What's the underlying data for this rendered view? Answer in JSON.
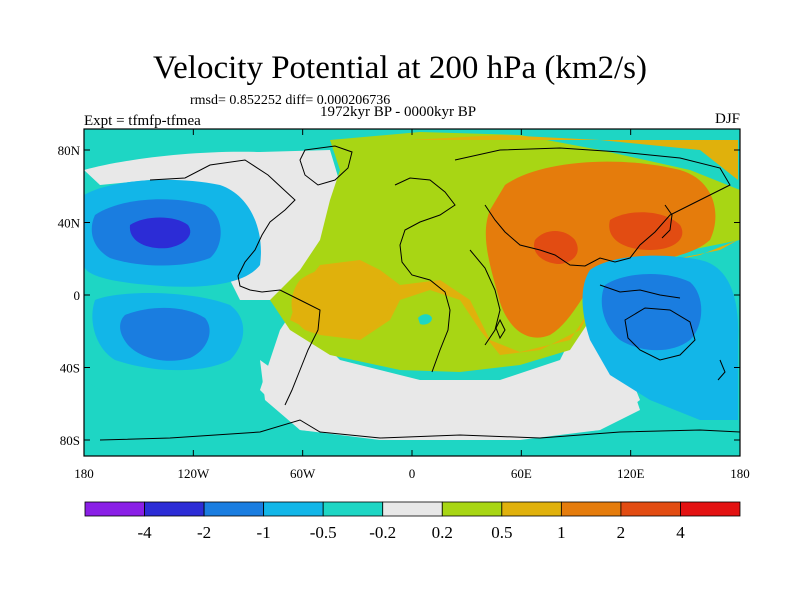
{
  "title": "Velocity Potential at 200 hPa (km2/s)",
  "stats": "rmsd= 0.852252 diff= 0.000206736",
  "experiment": "Expt = tfmfp-tfmea",
  "period": "1972kyr BP - 0000kyr BP",
  "season": "DJF",
  "lon_ticks": [
    "180",
    "120W",
    "60W",
    "0",
    "60E",
    "120E",
    "180"
  ],
  "lat_ticks": [
    "80N",
    "40N",
    "0",
    "40S",
    "80S"
  ],
  "colorbar": {
    "colors": [
      "#8a1fe6",
      "#2c2cd6",
      "#1a7de0",
      "#12b6e8",
      "#1ed6c4",
      "#e8e8e8",
      "#a8d614",
      "#e0b10c",
      "#e57c0c",
      "#e24c12",
      "#e31212"
    ],
    "labels": [
      "-4",
      "-2",
      "-1",
      "-0.5",
      "-0.2",
      "0.2",
      "0.5",
      "1",
      "2",
      "4"
    ]
  },
  "map_colors": {
    "ocean_background": "#1ed6c4",
    "neutral": "#e8e8e8",
    "weak_positive": "#a8d614",
    "moderate_positive": "#e0b10c",
    "strong_positive": "#e57c0c",
    "very_strong_positive": "#e24c12",
    "weak_negative": "#12b6e8",
    "moderate_negative": "#1a7de0",
    "strong_negative": "#2c2cd6"
  }
}
